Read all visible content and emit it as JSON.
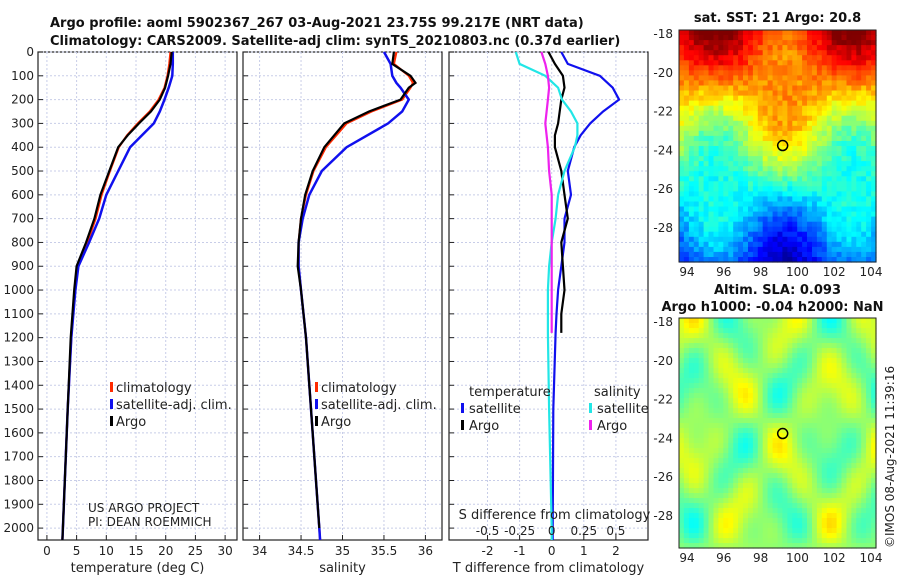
{
  "title_line1": "Argo profile: aoml 5902367_267 03-Aug-2021 23.75S 99.217E (NRT data)",
  "title_line2": "Climatology: CARS2009. Satellite-adj clim: synTS_20210803.nc (0.37d earlier)",
  "credit_line1": "US ARGO PROJECT",
  "credit_line2": "PI: DEAN ROEMMICH",
  "side_label": "©IMOS 08-Aug-2021 11:39:16",
  "colors": {
    "climatology": "#ff2a00",
    "satellite": "#1010ee",
    "argo": "#000000",
    "s_satellite": "#22e6e6",
    "s_argo": "#ee22ee"
  },
  "chart_data": [
    {
      "type": "line",
      "xlabel": "temperature (deg C)",
      "ylabel": "",
      "xlim": [
        -1.5,
        32
      ],
      "ylim": [
        2050,
        0
      ],
      "xticks": [
        "0",
        "5",
        "10",
        "15",
        "20",
        "25",
        "30"
      ],
      "xtick_values": [
        0,
        5,
        10,
        15,
        20,
        25,
        30
      ],
      "yticks": [
        "0",
        "100",
        "200",
        "300",
        "400",
        "500",
        "600",
        "700",
        "800",
        "900",
        "1000",
        "1100",
        "1200",
        "1300",
        "1400",
        "1500",
        "1600",
        "1700",
        "1800",
        "1900",
        "2000"
      ],
      "legend": [
        "climatology",
        "satellite-adj. clim.",
        "Argo"
      ],
      "depth": [
        0,
        50,
        100,
        150,
        200,
        250,
        300,
        350,
        400,
        500,
        600,
        700,
        800,
        900,
        1000,
        1200,
        1500,
        2000,
        2050
      ],
      "series": [
        {
          "name": "climatology",
          "values": [
            20.8,
            20.6,
            20.3,
            19.8,
            18.8,
            17.3,
            15.3,
            13.5,
            12.1,
            10.6,
            9.2,
            8.2,
            6.8,
            5.1,
            4.7,
            4.1,
            3.5,
            2.7,
            2.6
          ]
        },
        {
          "name": "satellite-adj. clim.",
          "values": [
            21.2,
            21.2,
            21.1,
            20.5,
            19.8,
            19,
            18,
            16,
            14,
            12,
            10,
            8.8,
            7.1,
            5.3,
            4.8,
            4.1,
            3.5,
            2.7,
            2.6
          ]
        },
        {
          "name": "Argo",
          "values": [
            21,
            20.8,
            20.4,
            19.9,
            19,
            17.5,
            15.5,
            13.6,
            12,
            10.5,
            9,
            8,
            6.6,
            5,
            4.6,
            4,
            3.5,
            2.7,
            2.6
          ]
        }
      ]
    },
    {
      "type": "line",
      "xlabel": "salinity",
      "xlim": [
        33.8,
        36.2
      ],
      "ylim": [
        2050,
        0
      ],
      "xticks": [
        "34",
        "34.5",
        "35",
        "35.5",
        "36"
      ],
      "xtick_values": [
        34,
        34.5,
        35,
        35.5,
        36
      ],
      "legend": [
        "climatology",
        "satellite-adj. clim.",
        "Argo"
      ],
      "depth": [
        0,
        50,
        100,
        130,
        150,
        200,
        250,
        300,
        400,
        500,
        600,
        700,
        800,
        900,
        1000,
        1200,
        1500,
        2000,
        2050
      ],
      "series": [
        {
          "name": "climatology",
          "values": [
            35.65,
            35.62,
            35.8,
            35.85,
            35.82,
            35.72,
            35.35,
            35.05,
            34.8,
            34.65,
            34.56,
            34.5,
            34.47,
            34.47,
            34.5,
            34.56,
            34.62,
            34.72,
            34.73
          ]
        },
        {
          "name": "satellite-adj. clim.",
          "values": [
            35.5,
            35.58,
            35.6,
            35.65,
            35.7,
            35.8,
            35.72,
            35.55,
            35.05,
            34.75,
            34.6,
            34.52,
            34.47,
            34.47,
            34.5,
            34.56,
            34.62,
            34.72,
            34.73
          ]
        },
        {
          "name": "Argo",
          "values": [
            35.62,
            35.6,
            35.82,
            35.88,
            35.8,
            35.7,
            35.32,
            35.02,
            34.78,
            34.64,
            34.55,
            34.5,
            34.47,
            34.46,
            34.5,
            34.56,
            34.62,
            34.72,
            null
          ]
        }
      ]
    },
    {
      "type": "line",
      "xlabel": "T difference from climatology",
      "x2label": "S difference from climatology",
      "xlim": [
        -3.2,
        3
      ],
      "ylim": [
        2050,
        0
      ],
      "xticks": [
        "-2",
        "-1",
        "0",
        "1",
        "2"
      ],
      "xtick_values": [
        -2,
        -1,
        0,
        1,
        2
      ],
      "x2ticks": [
        "-0.5",
        "-0.25",
        "0",
        "0.25",
        "0.5"
      ],
      "x2tick_values": [
        -0.5,
        -0.25,
        0,
        0.25,
        0.5
      ],
      "legend_t_title": "temperature",
      "legend_s_title": "salinity",
      "legend": [
        "satellite",
        "Argo",
        "satellite",
        "Argo"
      ],
      "depth": [
        0,
        50,
        100,
        150,
        200,
        250,
        300,
        350,
        400,
        500,
        600,
        700,
        800,
        900,
        1000,
        1100,
        1180,
        1500,
        2000,
        2050
      ],
      "series": [
        {
          "name": "T satellite",
          "values": [
            0.3,
            0.5,
            1.5,
            1.9,
            2.1,
            1.6,
            1.2,
            0.9,
            0.7,
            0.5,
            0.6,
            0.4,
            0.4,
            0.3,
            0.2,
            0.15,
            0.12,
            0.05,
            0.03,
            0.03
          ]
        },
        {
          "name": "T Argo",
          "values": [
            -0.1,
            0.1,
            0.35,
            0.4,
            0.3,
            0.25,
            0.2,
            0.1,
            0.1,
            0.3,
            0.4,
            0.5,
            0.3,
            0.35,
            0.4,
            0.3,
            0.3,
            null,
            null,
            null
          ]
        },
        {
          "name": "S satellite",
          "values": [
            -0.28,
            -0.25,
            -0.05,
            0.05,
            0.08,
            0.15,
            0.2,
            0.2,
            0.18,
            0.1,
            0.05,
            0.03,
            0,
            -0.02,
            -0.03,
            -0.03,
            -0.03,
            -0.02,
            0,
            0
          ]
        },
        {
          "name": "S Argo",
          "values": [
            -0.08,
            -0.05,
            -0.03,
            -0.02,
            -0.03,
            -0.04,
            -0.05,
            -0.04,
            -0.03,
            -0.02,
            0,
            0,
            0,
            0,
            0,
            0,
            0,
            null,
            null,
            null
          ]
        }
      ]
    },
    {
      "type": "heatmap",
      "title": "sat. SST: 21 Argo: 20.8",
      "xticks": [
        "94",
        "96",
        "98",
        "100",
        "102",
        "104"
      ],
      "yticks": [
        "-18",
        "-20",
        "-22",
        "-24",
        "-26",
        "-28"
      ],
      "marker": [
        99.2,
        -23.75
      ]
    },
    {
      "type": "heatmap",
      "title_line1": "Altim. SLA: 0.093",
      "title_line2": "Argo h1000: -0.04 h2000: NaN",
      "xticks": [
        "94",
        "96",
        "98",
        "100",
        "102",
        "104"
      ],
      "yticks": [
        "-18",
        "-20",
        "-22",
        "-24",
        "-26",
        "-28"
      ],
      "marker": [
        99.2,
        -23.75
      ]
    }
  ]
}
